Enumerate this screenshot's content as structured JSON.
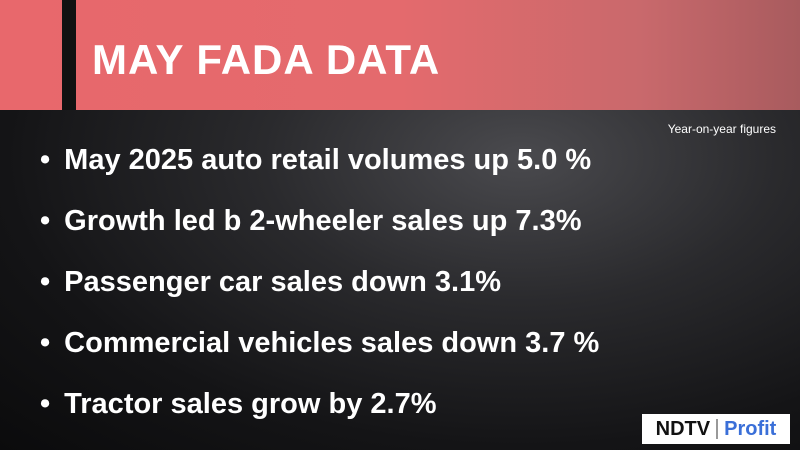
{
  "header": {
    "title": "MAY FADA DATA"
  },
  "note": "Year-on-year figures",
  "bullets": [
    "May 2025 auto retail volumes up 5.0 %",
    "Growth led b 2-wheeler sales up 7.3%",
    "Passenger car sales down 3.1%",
    "Commercial vehicles sales down 3.7 %",
    "Tractor sales grow by 2.7%"
  ],
  "logo": {
    "left": "NDTV",
    "right": "Profit"
  }
}
